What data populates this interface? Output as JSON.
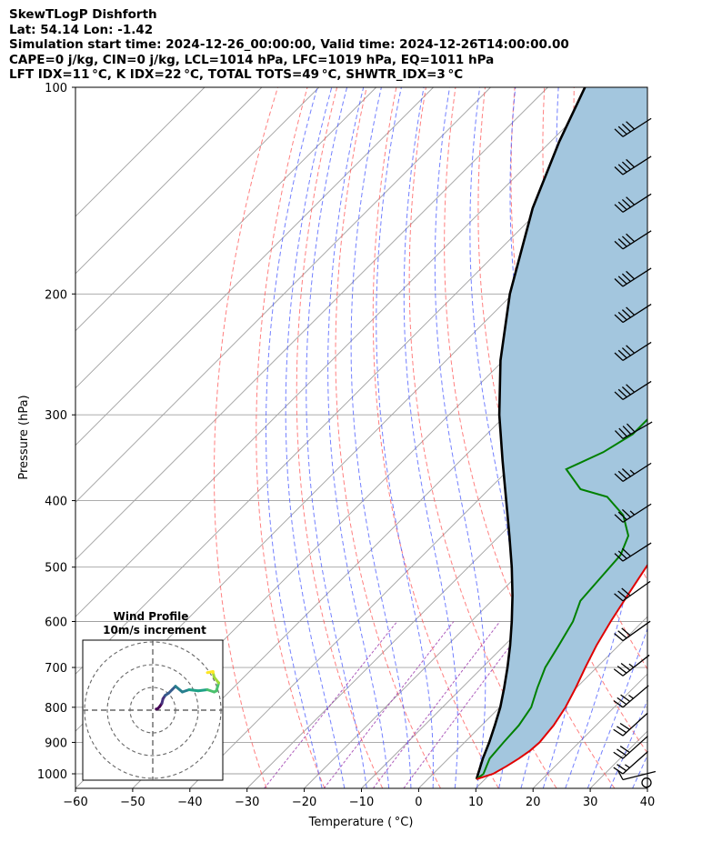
{
  "header": {
    "line1": "SkewTLogP Dishforth",
    "line2": "Lat: 54.14   Lon: -1.42",
    "line3": "Simulation start time: 2024-12-26_00:00:00, Valid time: 2024-12-26T14:00:00.00",
    "line4": "CAPE=0 j/kg, CIN=0 j/kg, LCL=1014 hPa, LFC=1019 hPa, EQ=1011 hPa",
    "line5": "LFT IDX=11 °C, K IDX=22 °C, TOTAL TOTS=49 °C, SHWTR_IDX=3 °C"
  },
  "chart_data": {
    "type": "skewt",
    "xlabel": "Temperature ( °C)",
    "ylabel": "Pressure (hPa)",
    "xlim": [
      -60,
      40
    ],
    "ylim": [
      1050,
      100
    ],
    "x_ticks": [
      "−60",
      "−50",
      "−40",
      "−30",
      "−20",
      "−10",
      "0",
      "10",
      "20",
      "30",
      "40"
    ],
    "x_tick_values": [
      -60,
      -50,
      -40,
      -30,
      -20,
      -10,
      0,
      10,
      20,
      30,
      40
    ],
    "y_ticks": [
      "100",
      "200",
      "300",
      "400",
      "500",
      "600",
      "700",
      "800",
      "900",
      "1000"
    ],
    "y_tick_values": [
      100,
      200,
      300,
      400,
      500,
      600,
      700,
      800,
      900,
      1000
    ],
    "grid": true,
    "colors": {
      "temperature": "#e00000",
      "dewpoint": "#008000",
      "parcel": "#000000",
      "fill": "#a3c6de",
      "dry_adiabat": "#ff5555",
      "moist_adiabat": "#4455ff",
      "mixing_ratio": "#9933aa",
      "isotherm": "#a0a0a0"
    },
    "temperature": [
      {
        "p": 1018,
        "t": 8.5
      },
      {
        "p": 1000,
        "t": 10.5
      },
      {
        "p": 975,
        "t": 11.5
      },
      {
        "p": 950,
        "t": 12.3
      },
      {
        "p": 925,
        "t": 12.9
      },
      {
        "p": 900,
        "t": 13.1
      },
      {
        "p": 850,
        "t": 12.6
      },
      {
        "p": 800,
        "t": 11.5
      },
      {
        "p": 750,
        "t": 9.9
      },
      {
        "p": 700,
        "t": 8.0
      },
      {
        "p": 650,
        "t": 6.1
      },
      {
        "p": 600,
        "t": 4.4
      },
      {
        "p": 550,
        "t": 2.8
      },
      {
        "p": 500,
        "t": 1.1
      },
      {
        "p": 450,
        "t": -0.7
      },
      {
        "p": 400,
        "t": -2.9
      },
      {
        "p": 350,
        "t": -5.4
      },
      {
        "p": 300,
        "t": -8.8
      },
      {
        "p": 275,
        "t": -11.0
      },
      {
        "p": 250,
        "t": -13.5
      },
      {
        "p": 225,
        "t": -16.0
      },
      {
        "p": 200,
        "t": -17.5
      },
      {
        "p": 180,
        "t": -16.5
      },
      {
        "p": 160,
        "t": -14.5
      },
      {
        "p": 140,
        "t": -11.5
      },
      {
        "p": 125,
        "t": -8.0
      },
      {
        "p": 112,
        "t": -4.0
      },
      {
        "p": 100,
        "t": -2.0
      }
    ],
    "dewpoint": [
      {
        "p": 1018,
        "t": 8.5
      },
      {
        "p": 1000,
        "t": 8.8
      },
      {
        "p": 975,
        "t": 8.0
      },
      {
        "p": 950,
        "t": 7.2
      },
      {
        "p": 900,
        "t": 6.8
      },
      {
        "p": 850,
        "t": 6.5
      },
      {
        "p": 800,
        "t": 5.5
      },
      {
        "p": 750,
        "t": 3.2
      },
      {
        "p": 700,
        "t": 1.0
      },
      {
        "p": 650,
        "t": -0.5
      },
      {
        "p": 600,
        "t": -2.2
      },
      {
        "p": 560,
        "t": -4.5
      },
      {
        "p": 520,
        "t": -5.0
      },
      {
        "p": 480,
        "t": -5.5
      },
      {
        "p": 450,
        "t": -7.5
      },
      {
        "p": 420,
        "t": -12.0
      },
      {
        "p": 395,
        "t": -18.0
      },
      {
        "p": 385,
        "t": -24.0
      },
      {
        "p": 360,
        "t": -30.0
      },
      {
        "p": 340,
        "t": -26.5
      },
      {
        "p": 320,
        "t": -24.5
      },
      {
        "p": 290,
        "t": -24.5
      },
      {
        "p": 270,
        "t": -26.0
      },
      {
        "p": 250,
        "t": -26.5
      },
      {
        "p": 230,
        "t": -27.0
      },
      {
        "p": 210,
        "t": -25.0
      },
      {
        "p": 195,
        "t": -23.5
      },
      {
        "p": 170,
        "t": -22.0
      },
      {
        "p": 145,
        "t": -20.0
      },
      {
        "p": 130,
        "t": -17.5
      },
      {
        "p": 118,
        "t": -14.5
      },
      {
        "p": 108,
        "t": -12.0
      },
      {
        "p": 100,
        "t": -11.0
      }
    ],
    "parcel_profile": [
      {
        "p": 1018,
        "t": 8.5
      },
      {
        "p": 950,
        "t": 6.0
      },
      {
        "p": 900,
        "t": 4.3
      },
      {
        "p": 850,
        "t": 2.3
      },
      {
        "p": 800,
        "t": 0.1
      },
      {
        "p": 750,
        "t": -2.6
      },
      {
        "p": 700,
        "t": -5.6
      },
      {
        "p": 650,
        "t": -9.0
      },
      {
        "p": 600,
        "t": -12.9
      },
      {
        "p": 550,
        "t": -17.3
      },
      {
        "p": 500,
        "t": -22.4
      },
      {
        "p": 450,
        "t": -28.3
      },
      {
        "p": 400,
        "t": -35.0
      },
      {
        "p": 350,
        "t": -42.6
      },
      {
        "p": 300,
        "t": -51.2
      },
      {
        "p": 250,
        "t": -60.5
      },
      {
        "p": 200,
        "t": -70.5
      },
      {
        "p": 150,
        "t": -81.5
      },
      {
        "p": 120,
        "t": -88.5
      },
      {
        "p": 100,
        "t": -93.5
      }
    ],
    "wind_barbs": [
      {
        "p": 1030,
        "kind": "calm"
      },
      {
        "p": 1020,
        "u": 8,
        "v": 2,
        "speed_kt": 10
      },
      {
        "p": 1000,
        "u": 9,
        "v": 8,
        "speed_kt": 25
      },
      {
        "p": 950,
        "u": 10,
        "v": 9,
        "speed_kt": 30
      },
      {
        "p": 880,
        "u": 12,
        "v": 11,
        "speed_kt": 30
      },
      {
        "p": 800,
        "u": 13,
        "v": 11,
        "speed_kt": 35
      },
      {
        "p": 720,
        "u": 14,
        "v": 11,
        "speed_kt": 35
      },
      {
        "p": 640,
        "u": 14,
        "v": 10,
        "speed_kt": 30
      },
      {
        "p": 560,
        "u": 14,
        "v": 10,
        "speed_kt": 30
      },
      {
        "p": 490,
        "u": 14,
        "v": 9,
        "speed_kt": 30
      },
      {
        "p": 430,
        "u": 14,
        "v": 9,
        "speed_kt": 35
      },
      {
        "p": 375,
        "u": 14,
        "v": 9,
        "speed_kt": 35
      },
      {
        "p": 325,
        "u": 14,
        "v": 8,
        "speed_kt": 40
      },
      {
        "p": 285,
        "u": 14,
        "v": 9,
        "speed_kt": 40
      },
      {
        "p": 250,
        "u": 14,
        "v": 9,
        "speed_kt": 40
      },
      {
        "p": 220,
        "u": 14,
        "v": 9,
        "speed_kt": 40
      },
      {
        "p": 195,
        "u": 14,
        "v": 9,
        "speed_kt": 40
      },
      {
        "p": 172,
        "u": 14,
        "v": 9,
        "speed_kt": 40
      },
      {
        "p": 152,
        "u": 14,
        "v": 9,
        "speed_kt": 40
      },
      {
        "p": 134,
        "u": 14,
        "v": 9,
        "speed_kt": 40
      },
      {
        "p": 118,
        "u": 14,
        "v": 9,
        "speed_kt": 40
      }
    ],
    "hodograph": {
      "title": "Wind Profile",
      "subtitle": "10m/s increment",
      "rings_ms": [
        10,
        20,
        30
      ],
      "u": [
        1.5,
        2.0,
        3.0,
        4.0,
        4.5,
        5.5,
        7.0,
        8.5,
        10.0,
        13.0,
        16.0,
        20.0,
        24.0,
        27.0,
        28.0,
        29.0,
        27.0,
        26.5,
        26.5,
        24.0
      ],
      "v": [
        0.5,
        0.5,
        1.5,
        3.0,
        5.0,
        6.5,
        7.5,
        9.0,
        10.5,
        8.0,
        9.0,
        8.5,
        9.0,
        8.0,
        8.5,
        12.0,
        14.5,
        16.5,
        17.0,
        16.5
      ]
    }
  }
}
